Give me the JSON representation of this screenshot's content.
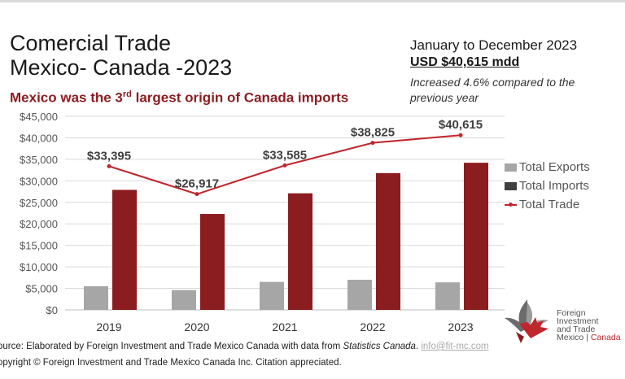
{
  "header": {
    "title_line1": "Comercial Trade",
    "title_line2": "Mexico- Canada -2023",
    "subtitle_pre": "Mexico was the 3",
    "subtitle_sup": "rd",
    "subtitle_post": " largest origin of Canada imports"
  },
  "summary": {
    "period": "January to December 2023",
    "amount": "USD $40,615 mdd",
    "growth": "Increased 4.6%  compared to the previous year"
  },
  "chart_data": {
    "type": "bar",
    "categories": [
      "2019",
      "2020",
      "2021",
      "2022",
      "2023"
    ],
    "series": [
      {
        "name": "Total Exports",
        "type": "bar",
        "color": "#a6a6a6",
        "values": [
          5500,
          4600,
          6500,
          7000,
          6400
        ]
      },
      {
        "name": "Total Imports",
        "type": "bar",
        "color": "#8b1c1f",
        "values": [
          27900,
          22300,
          27100,
          31800,
          34200
        ]
      },
      {
        "name": "Total Trade",
        "type": "line",
        "color": "#c0272d",
        "values": [
          33395,
          26917,
          33585,
          38825,
          40615
        ]
      }
    ],
    "data_labels": [
      "$33,395",
      "$26,917",
      "$33,585",
      "$38,825",
      "$40,615"
    ],
    "y_ticks": [
      0,
      5000,
      10000,
      15000,
      20000,
      25000,
      30000,
      35000,
      40000,
      45000
    ],
    "y_tick_labels": [
      "$0",
      "$5,000",
      "$10,000",
      "$15,000",
      "$20,000",
      "$25,000",
      "$30,000",
      "$35,000",
      "$40,000",
      "$45,000"
    ],
    "ylim": [
      0,
      45000
    ],
    "grid": true,
    "legend_position": "right"
  },
  "legend": {
    "exports": "Total Exports",
    "imports": "Total Imports",
    "trade": "Total Trade"
  },
  "colors": {
    "exports": "#a6a6a6",
    "imports": "#8b1c1f",
    "trade": "#c0272d",
    "legend_imports_swatch": "#404040"
  },
  "logo": {
    "line1": "Foreign",
    "line2": "Investment",
    "line3": "and Trade",
    "line4_pre": "Mexico | ",
    "line4_red": "Canada",
    "icon": "eagle-maple-leaf-icon"
  },
  "footer": {
    "source_pre": "ource: Elaborated by Foreign Investment and Trade Mexico Canada with data from ",
    "source_italic": "Statistics Canada",
    "source_post": ". ",
    "email": "info@fit-mc.com",
    "copyright": "opyright © Foreign Investment and Trade Mexico Canada Inc. Citation appreciated."
  }
}
